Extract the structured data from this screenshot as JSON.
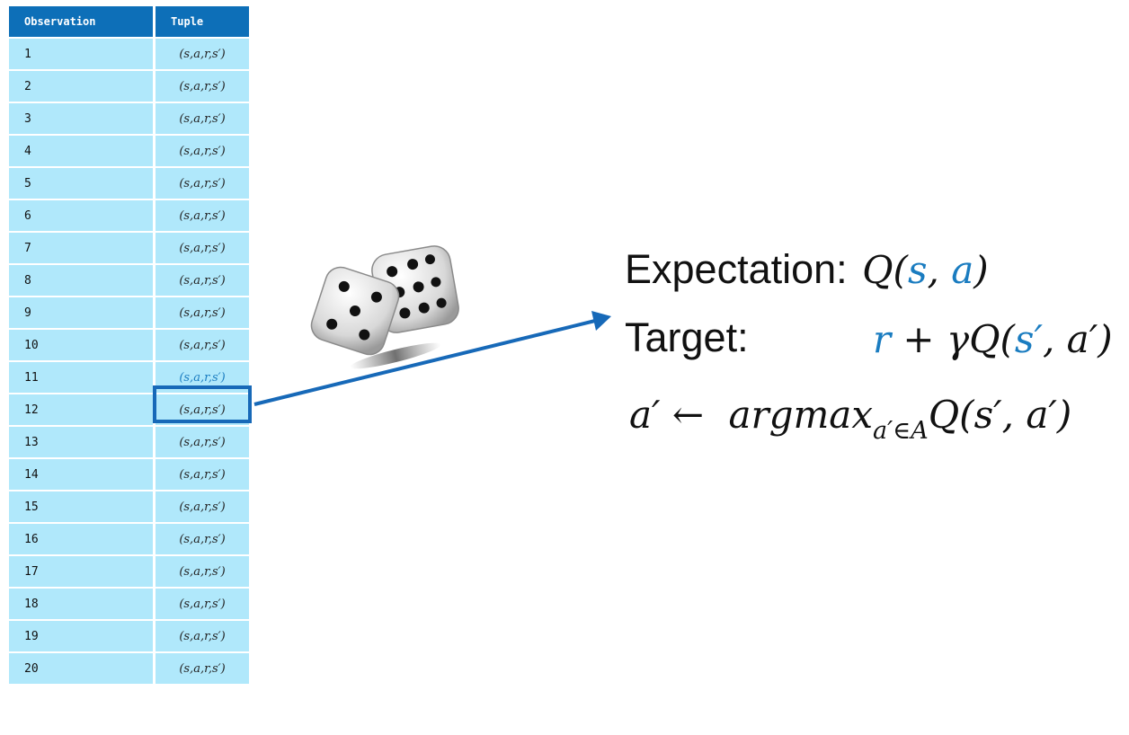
{
  "table": {
    "headers": {
      "observation": "Observation",
      "tuple": "Tuple"
    },
    "rows": [
      {
        "obs": "1",
        "tuple": "(s,a,r,s′)"
      },
      {
        "obs": "2",
        "tuple": "(s,a,r,s′)"
      },
      {
        "obs": "3",
        "tuple": "(s,a,r,s′)"
      },
      {
        "obs": "4",
        "tuple": "(s,a,r,s′)"
      },
      {
        "obs": "5",
        "tuple": "(s,a,r,s′)"
      },
      {
        "obs": "6",
        "tuple": "(s,a,r,s′)"
      },
      {
        "obs": "7",
        "tuple": "(s,a,r,s′)"
      },
      {
        "obs": "8",
        "tuple": "(s,a,r,s′)"
      },
      {
        "obs": "9",
        "tuple": "(s,a,r,s′)"
      },
      {
        "obs": "10",
        "tuple": "(s,a,r,s′)"
      },
      {
        "obs": "11",
        "tuple": "(s,a,r,s′)",
        "selected": true
      },
      {
        "obs": "12",
        "tuple": "(s,a,r,s′)"
      },
      {
        "obs": "13",
        "tuple": "(s,a,r,s′)"
      },
      {
        "obs": "14",
        "tuple": "(s,a,r,s′)"
      },
      {
        "obs": "15",
        "tuple": "(s,a,r,s′)"
      },
      {
        "obs": "16",
        "tuple": "(s,a,r,s′)"
      },
      {
        "obs": "17",
        "tuple": "(s,a,r,s′)"
      },
      {
        "obs": "18",
        "tuple": "(s,a,r,s′)"
      },
      {
        "obs": "19",
        "tuple": "(s,a,r,s′)"
      },
      {
        "obs": "20",
        "tuple": "(s,a,r,s′)"
      }
    ]
  },
  "equations": {
    "expectation_label": "Expectation:",
    "expectation_math": {
      "q": "Q(",
      "s": "s",
      "comma": ", ",
      "a": "a",
      "close": ")"
    },
    "target_label": "Target:",
    "target_math": {
      "r": "r",
      "rest": " + γQ(",
      "s_prime": "s′",
      "tail": ", a′)"
    },
    "action_rule": {
      "lhs": "a′ ← ",
      "argmax": "argmax",
      "sub": "a′∈A",
      "rhs": "Q(s′, a′)"
    }
  },
  "colors": {
    "header_bg": "#0d6fb8",
    "cell_bg": "#b0e8fb",
    "highlight": "#1769b8",
    "math_blue": "#1a7cc0"
  },
  "icons": [
    "dice-icon",
    "arrow-icon"
  ]
}
